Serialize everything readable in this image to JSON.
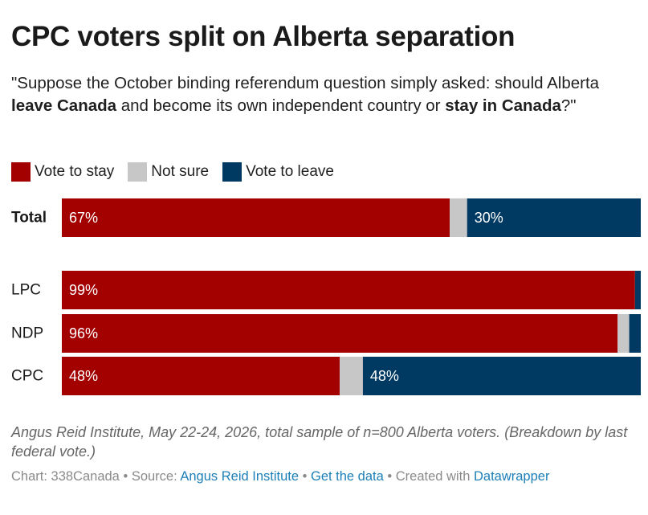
{
  "title": "CPC voters split on Alberta separation",
  "subtitle": {
    "p1": "\"Suppose the October binding referendum question simply asked: should Alberta ",
    "b1": "leave Canada",
    "p2": " and become its own independent country or ",
    "b2": "stay in Canada",
    "p3": "?\""
  },
  "legend": [
    {
      "label": "Vote to stay",
      "color": "#a30000"
    },
    {
      "label": "Not sure",
      "color": "#c7c7c7"
    },
    {
      "label": "Vote to leave",
      "color": "#003a63"
    }
  ],
  "chart_data": {
    "type": "bar",
    "orientation": "horizontal",
    "stacked": true,
    "percent_scale": [
      0,
      100
    ],
    "categories": [
      "Total",
      "LPC",
      "NDP",
      "CPC"
    ],
    "series": [
      {
        "name": "Vote to stay",
        "color": "#a30000",
        "values": [
          67,
          99,
          96,
          48
        ]
      },
      {
        "name": "Not sure",
        "color": "#c7c7c7",
        "values": [
          3,
          0,
          2,
          4
        ]
      },
      {
        "name": "Vote to leave",
        "color": "#003a63",
        "values": [
          30,
          1,
          2,
          48
        ]
      }
    ],
    "data_labels": [
      [
        "67%",
        "",
        "30%"
      ],
      [
        "99%",
        "",
        ""
      ],
      [
        "96%",
        "",
        ""
      ],
      [
        "48%",
        "",
        "48%"
      ]
    ],
    "bold_categories": [
      "Total"
    ]
  },
  "notes": "Angus Reid Institute, May 22-24, 2026, total sample of n=800 Alberta voters. (Breakdown by last federal vote.)",
  "footer": {
    "chart_prefix": "Chart: ",
    "chart_by": "338Canada",
    "sep1": " • ",
    "source_prefix": "Source: ",
    "source_link": "Angus Reid Institute",
    "sep2": " • ",
    "data_link": "Get the data",
    "sep3": " • ",
    "created_prefix": "Created with ",
    "created_link": "Datawrapper"
  }
}
